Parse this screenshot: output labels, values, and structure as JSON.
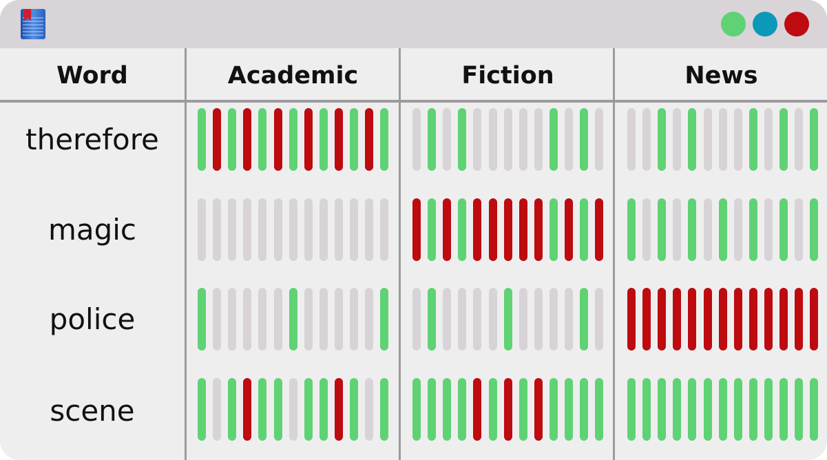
{
  "colors": {
    "window_bg": "#efeeef",
    "titlebar_bg": "#d8d4d8",
    "separator": "#9c9a9c",
    "bar_positive": "#5fd274",
    "bar_negative": "#bd0b0f",
    "bar_neutral": "#d7d3d7",
    "dot_green": "#5fd274",
    "dot_teal": "#0c98b8",
    "dot_red": "#bd0b0f"
  },
  "titlebar": {
    "app_icon": "book-icon",
    "window_controls": [
      "green-dot",
      "teal-dot",
      "red-dot"
    ]
  },
  "table": {
    "headers": [
      "Word",
      "Academic",
      "Fiction",
      "News"
    ],
    "rows": [
      {
        "word": "therefore",
        "cells": [
          [
            "g",
            "r",
            "g",
            "r",
            "g",
            "r",
            "g",
            "r",
            "g",
            "r",
            "g",
            "r",
            "g"
          ],
          [
            "n",
            "g",
            "n",
            "g",
            "n",
            "n",
            "n",
            "n",
            "n",
            "g",
            "n",
            "g",
            "n"
          ],
          [
            "n",
            "n",
            "g",
            "n",
            "g",
            "n",
            "n",
            "n",
            "g",
            "n",
            "g",
            "n",
            "g"
          ]
        ]
      },
      {
        "word": "magic",
        "cells": [
          [
            "n",
            "n",
            "n",
            "n",
            "n",
            "n",
            "n",
            "n",
            "n",
            "n",
            "n",
            "n",
            "n"
          ],
          [
            "r",
            "g",
            "r",
            "g",
            "r",
            "r",
            "r",
            "r",
            "r",
            "g",
            "r",
            "g",
            "r"
          ],
          [
            "g",
            "n",
            "g",
            "n",
            "g",
            "n",
            "g",
            "n",
            "g",
            "n",
            "g",
            "n",
            "g"
          ]
        ]
      },
      {
        "word": "police",
        "cells": [
          [
            "g",
            "n",
            "n",
            "n",
            "n",
            "n",
            "g",
            "n",
            "n",
            "n",
            "n",
            "n",
            "g"
          ],
          [
            "n",
            "g",
            "n",
            "n",
            "n",
            "n",
            "g",
            "n",
            "n",
            "n",
            "n",
            "g",
            "n"
          ],
          [
            "r",
            "r",
            "r",
            "r",
            "r",
            "r",
            "r",
            "r",
            "r",
            "r",
            "r",
            "r",
            "r"
          ]
        ]
      },
      {
        "word": "scene",
        "cells": [
          [
            "g",
            "n",
            "g",
            "r",
            "g",
            "g",
            "n",
            "g",
            "g",
            "r",
            "g",
            "n",
            "g"
          ],
          [
            "g",
            "g",
            "g",
            "g",
            "r",
            "g",
            "r",
            "g",
            "r",
            "g",
            "g",
            "g",
            "g"
          ],
          [
            "g",
            "g",
            "g",
            "g",
            "g",
            "g",
            "g",
            "g",
            "g",
            "g",
            "g",
            "g",
            "g"
          ]
        ]
      }
    ]
  }
}
